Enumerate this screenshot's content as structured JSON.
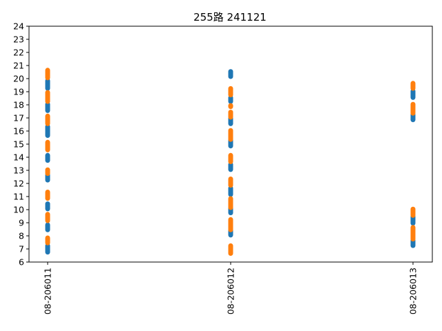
{
  "chart_data": {
    "type": "scatter",
    "title": "255路  241121",
    "xlabel": "",
    "ylabel": "",
    "categories": [
      "08-206011",
      "08-206012",
      "08-206013"
    ],
    "ylim": [
      6,
      24
    ],
    "yticks": [
      6,
      7,
      8,
      9,
      10,
      11,
      12,
      13,
      14,
      15,
      16,
      17,
      18,
      19,
      20,
      21,
      22,
      23,
      24
    ],
    "grid": false,
    "legend": "none",
    "series": [
      {
        "color": "#1f77b4",
        "points": [
          {
            "x": "08-206011",
            "from": 6.6,
            "to": 7.4
          },
          {
            "x": "08-206011",
            "from": 8.3,
            "to": 9.0
          },
          {
            "x": "08-206011",
            "from": 9.9,
            "to": 10.6
          },
          {
            "x": "08-206011",
            "from": 12.1,
            "to": 12.8
          },
          {
            "x": "08-206011",
            "from": 13.6,
            "to": 14.3
          },
          {
            "x": "08-206011",
            "from": 15.5,
            "to": 16.5
          },
          {
            "x": "08-206011",
            "from": 17.4,
            "to": 18.2
          },
          {
            "x": "08-206011",
            "from": 19.1,
            "to": 20.0
          },
          {
            "x": "08-206012",
            "from": 7.9,
            "to": 8.6
          },
          {
            "x": "08-206012",
            "from": 9.6,
            "to": 10.3
          },
          {
            "x": "08-206012",
            "from": 11.0,
            "to": 11.8
          },
          {
            "x": "08-206012",
            "from": 12.9,
            "to": 13.6
          },
          {
            "x": "08-206012",
            "from": 14.7,
            "to": 15.5
          },
          {
            "x": "08-206012",
            "from": 16.4,
            "to": 17.1
          },
          {
            "x": "08-206012",
            "from": 18.1,
            "to": 18.7
          },
          {
            "x": "08-206012",
            "from": 20.0,
            "to": 20.7
          },
          {
            "x": "08-206013",
            "from": 7.1,
            "to": 7.8
          },
          {
            "x": "08-206013",
            "from": 8.8,
            "to": 9.6
          },
          {
            "x": "08-206013",
            "from": 16.7,
            "to": 17.4
          },
          {
            "x": "08-206013",
            "from": 18.4,
            "to": 19.2
          }
        ]
      },
      {
        "color": "#ff7f0e",
        "points": [
          {
            "x": "08-206011",
            "from": 7.3,
            "to": 8.0
          },
          {
            "x": "08-206011",
            "from": 9.0,
            "to": 9.8
          },
          {
            "x": "08-206011",
            "from": 10.7,
            "to": 11.5
          },
          {
            "x": "08-206011",
            "from": 12.6,
            "to": 13.2
          },
          {
            "x": "08-206011",
            "from": 14.4,
            "to": 15.3
          },
          {
            "x": "08-206011",
            "from": 16.4,
            "to": 17.3
          },
          {
            "x": "08-206011",
            "from": 18.1,
            "to": 19.1
          },
          {
            "x": "08-206011",
            "from": 19.9,
            "to": 20.8
          },
          {
            "x": "08-206012",
            "from": 6.5,
            "to": 7.4
          },
          {
            "x": "08-206012",
            "from": 8.3,
            "to": 9.4
          },
          {
            "x": "08-206012",
            "from": 10.0,
            "to": 11.0
          },
          {
            "x": "08-206012",
            "from": 11.7,
            "to": 12.5
          },
          {
            "x": "08-206012",
            "from": 13.5,
            "to": 14.3
          },
          {
            "x": "08-206012",
            "from": 15.2,
            "to": 16.2
          },
          {
            "x": "08-206012",
            "from": 16.9,
            "to": 17.6
          },
          {
            "x": "08-206012",
            "from": 17.7,
            "to": 18.1
          },
          {
            "x": "08-206012",
            "from": 18.6,
            "to": 19.4
          },
          {
            "x": "08-206013",
            "from": 7.6,
            "to": 8.8
          },
          {
            "x": "08-206013",
            "from": 9.4,
            "to": 10.2
          },
          {
            "x": "08-206013",
            "from": 17.2,
            "to": 18.2
          },
          {
            "x": "08-206013",
            "from": 19.1,
            "to": 19.8
          }
        ]
      }
    ]
  }
}
